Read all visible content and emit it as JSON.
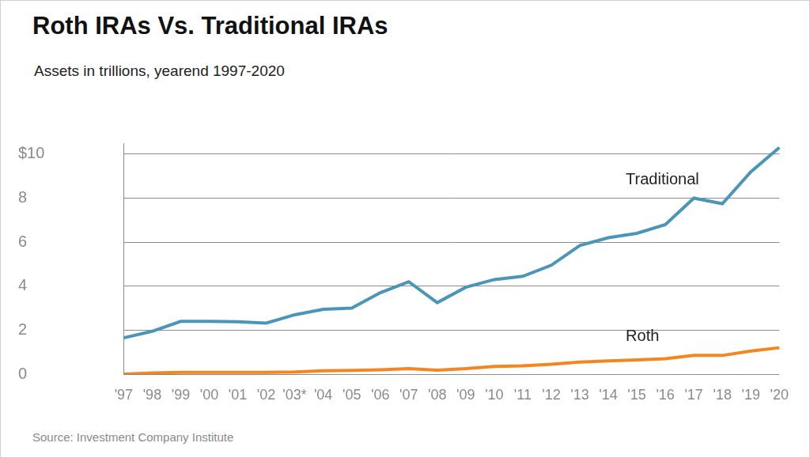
{
  "chart_data": {
    "type": "line",
    "title": "Roth IRAs Vs. Traditional IRAs",
    "subtitle": "Assets in trillions, yearend 1997-2020",
    "source": "Source: Investment Company Institute",
    "categories": [
      "'97",
      "'98",
      "'99",
      "'00",
      "'01",
      "'02",
      "'03*",
      "'04",
      "'05",
      "'06",
      "'07",
      "'08",
      "'09",
      "'10",
      "'11",
      "'12",
      "'13",
      "'14",
      "'15",
      "'16",
      "'17",
      "'18",
      "'19",
      "'20"
    ],
    "series": [
      {
        "name": "Traditional",
        "color": "#4a96b8",
        "values": [
          1.65,
          1.95,
          2.4,
          2.4,
          2.38,
          2.32,
          2.7,
          2.95,
          3.0,
          3.7,
          4.2,
          3.25,
          3.95,
          4.3,
          4.45,
          4.95,
          5.85,
          6.2,
          6.4,
          6.8,
          8.0,
          7.75,
          9.2,
          10.3
        ]
      },
      {
        "name": "Roth",
        "color": "#f5861f",
        "values": [
          0.0,
          0.05,
          0.08,
          0.08,
          0.08,
          0.08,
          0.1,
          0.15,
          0.17,
          0.2,
          0.25,
          0.18,
          0.25,
          0.35,
          0.38,
          0.45,
          0.55,
          0.6,
          0.65,
          0.7,
          0.85,
          0.85,
          1.05,
          1.2
        ]
      }
    ],
    "ylim": [
      0,
      10.5
    ],
    "yticks": [
      0,
      2,
      4,
      6,
      8,
      {
        "value": 10,
        "label": "$10"
      }
    ],
    "grid": true
  }
}
